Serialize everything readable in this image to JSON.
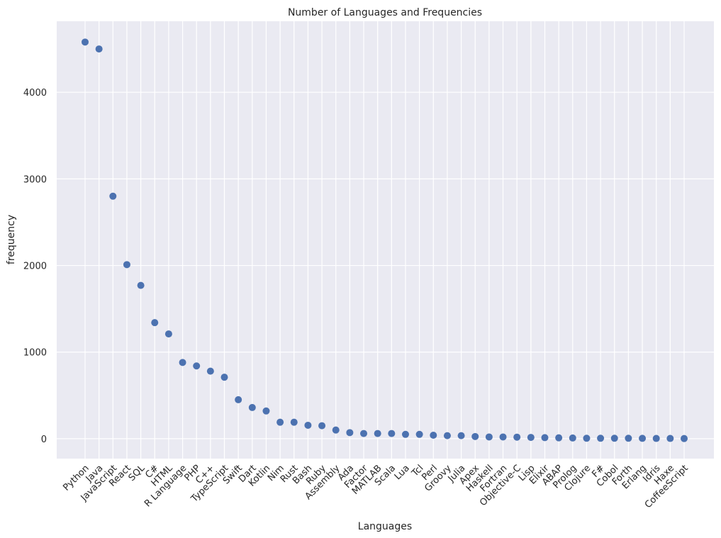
{
  "chart_data": {
    "type": "scatter",
    "title": "Number of Languages and Frequencies",
    "xlabel": "Languages",
    "ylabel": "frequency",
    "ylim": [
      -230,
      4820
    ],
    "yticks": [
      0,
      1000,
      2000,
      3000,
      4000
    ],
    "grid": true,
    "background_color": "#eaeaf2",
    "point_color": "#4c72b0",
    "categories": [
      "Python",
      "Java",
      "JavaScript",
      "React",
      "SQL",
      "C#",
      "HTML",
      "R Language",
      "PHP",
      "C++",
      "TypeScript",
      "Swift",
      "Dart",
      "Kotlin",
      "Nim",
      "Rust",
      "Bash",
      "Ruby",
      "Assembly",
      "Ada",
      "Factor",
      "MATLAB",
      "Scala",
      "Lua",
      "Tcl",
      "Perl",
      "Groovy",
      "Julia",
      "Apex",
      "Haskell",
      "Fortran",
      "Objective-C",
      "Lisp",
      "Elixir",
      "ABAP",
      "Prolog",
      "Clojure",
      "F#",
      "Cobol",
      "Forth",
      "Erlang",
      "Idris",
      "Haxe",
      "CoffeeScript"
    ],
    "values": [
      4580,
      4500,
      2800,
      2010,
      1770,
      1340,
      1210,
      880,
      840,
      780,
      710,
      450,
      360,
      320,
      190,
      190,
      155,
      150,
      100,
      70,
      60,
      60,
      60,
      50,
      50,
      40,
      35,
      35,
      25,
      20,
      20,
      18,
      15,
      12,
      10,
      8,
      5,
      5,
      5,
      5,
      4,
      3,
      3,
      2
    ]
  }
}
